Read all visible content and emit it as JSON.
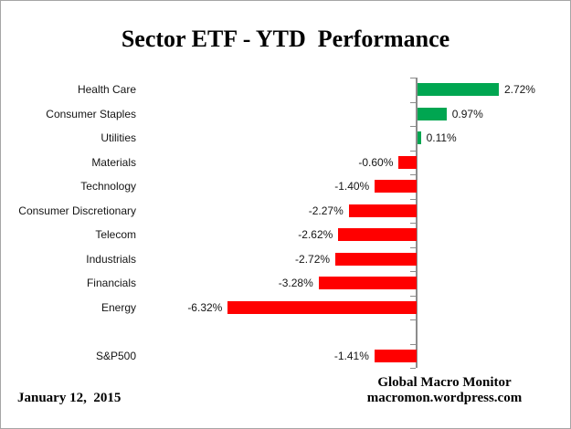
{
  "title": "Sector ETF - YTD  Performance",
  "footer": {
    "date": "January 12,  2015",
    "brand_line1": "Global Macro Monitor",
    "brand_line2": "macromon.wordpress.com"
  },
  "chart_data": {
    "type": "bar",
    "orientation": "horizontal",
    "title": "Sector ETF - YTD  Performance",
    "categories": [
      "Health Care",
      "Consumer Staples",
      "Utilities",
      "Materials",
      "Technology",
      "Consumer Discretionary",
      "Telecom",
      "Industrials",
      "Financials",
      "Energy",
      "",
      "S&P500"
    ],
    "values": [
      2.72,
      0.97,
      0.11,
      -0.6,
      -1.4,
      -2.27,
      -2.62,
      -2.72,
      -3.28,
      -6.32,
      null,
      -1.41
    ],
    "value_labels": [
      "2.72%",
      "0.97%",
      "0.11%",
      "-0.60%",
      "-1.40%",
      "-2.27%",
      "-2.62%",
      "-2.72%",
      "-3.28%",
      "-6.32%",
      "",
      "-1.41%"
    ],
    "value_suffix": "%",
    "positive_color": "#00A651",
    "negative_color": "#FF0000",
    "axis_color": "#8C8C8C",
    "xlim": [
      -7.1,
      5.2
    ],
    "grid": false,
    "legend": false
  }
}
